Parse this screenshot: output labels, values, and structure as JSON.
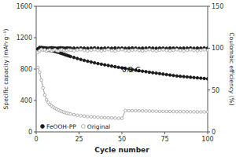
{
  "chart_data": {
    "type": "line",
    "xlabel": "Cycle number",
    "ylabel": "Specific capacity (mAh·g⁻¹)",
    "y2label": "Coulombic efficiency (%)",
    "xlim": [
      0,
      100
    ],
    "ylim": [
      0,
      1600
    ],
    "y2lim": [
      0,
      150
    ],
    "xticks": [
      0,
      25,
      50,
      75,
      100
    ],
    "yticks": [
      0,
      400,
      800,
      1200,
      1600
    ],
    "y2ticks": [
      0,
      50,
      100,
      150
    ],
    "grid": false,
    "legend": "lower left",
    "annotations": [
      {
        "text": "0.2 C",
        "x": 50,
        "y": 760
      }
    ],
    "x": [
      1,
      2,
      3,
      4,
      5,
      6,
      7,
      8,
      9,
      10,
      11,
      12,
      13,
      14,
      15,
      16,
      17,
      18,
      19,
      20,
      22,
      24,
      26,
      28,
      30,
      32,
      34,
      36,
      38,
      40,
      42,
      44,
      46,
      48,
      50,
      52,
      54,
      56,
      58,
      60,
      62,
      64,
      66,
      68,
      70,
      72,
      74,
      76,
      78,
      80,
      82,
      84,
      86,
      88,
      90,
      92,
      94,
      96,
      98,
      100
    ],
    "series": [
      {
        "name": "FeOOH-PP",
        "type": "line",
        "color": "#1a1a1a",
        "marker": "circle",
        "line_style": "solid",
        "values": [
          1055,
          1075,
          1068,
          1060,
          1052,
          1045,
          1040,
          1038,
          1035,
          1030,
          1025,
          1018,
          1012,
          1005,
          998,
          990,
          982,
          975,
          968,
          960,
          948,
          935,
          922,
          910,
          900,
          890,
          880,
          870,
          862,
          854,
          846,
          838,
          830,
          822,
          815,
          808,
          800,
          793,
          786,
          780,
          773,
          767,
          760,
          754,
          748,
          742,
          736,
          730,
          724,
          718,
          712,
          708,
          704,
          700,
          696,
          692,
          688,
          684,
          680,
          676
        ]
      },
      {
        "name": "Original",
        "type": "line",
        "color": "#a0a0a0",
        "marker": "circle-open",
        "line_style": "solid",
        "values": [
          820,
          760,
          660,
          560,
          470,
          410,
          375,
          350,
          330,
          315,
          302,
          290,
          278,
          268,
          260,
          252,
          245,
          238,
          233,
          228,
          220,
          212,
          206,
          200,
          195,
          192,
          189,
          186,
          183,
          181,
          179,
          177,
          176,
          174,
          173,
          272,
          271,
          270,
          269,
          268,
          267,
          266,
          265,
          264,
          263,
          262,
          261,
          260,
          260,
          259,
          258,
          258,
          257,
          257,
          256,
          256,
          255,
          255,
          255,
          254
        ]
      },
      {
        "type": "scatter",
        "axis": "y2",
        "color": "#1a1a1a",
        "marker": "circle",
        "values": [
          99.2,
          100.5,
          100.8,
          100.6,
          100.4,
          100.1,
          99.9,
          100.2,
          100.5,
          100.3,
          100.0,
          99.8,
          100.1,
          100.4,
          100.2,
          100.0,
          99.8,
          100.2,
          100.1,
          100.0,
          100.1,
          99.9,
          100.2,
          100.0,
          99.9,
          100.1,
          100.3,
          100.0,
          99.8,
          100.1,
          100.0,
          99.9,
          100.2,
          100.0,
          100.1,
          99.9,
          100.0,
          100.2,
          100.1,
          99.8,
          100.0,
          100.1,
          100.2,
          100.0,
          99.9,
          100.1,
          100.0,
          99.8,
          100.2,
          100.1,
          100.0,
          99.9,
          100.1,
          100.0,
          100.2,
          99.9,
          100.1,
          100.0,
          100.2,
          100.0
        ]
      },
      {
        "type": "scatter",
        "axis": "y2",
        "color": "#a0a0a0",
        "marker": "circle-open",
        "values": [
          95.0,
          97.0,
          98.5,
          97.5,
          98.0,
          96.5,
          97.5,
          98.0,
          96.8,
          97.5,
          98.2,
          97.0,
          96.5,
          97.8,
          98.1,
          97.4,
          96.8,
          97.2,
          98.0,
          97.5,
          96.9,
          97.8,
          98.2,
          97.2,
          96.7,
          97.5,
          98.1,
          97.3,
          96.8,
          97.5,
          98.2,
          97.0,
          96.5,
          97.8,
          98.2,
          97.0,
          96.8,
          97.5,
          98.0,
          97.3,
          96.7,
          97.4,
          98.1,
          97.2,
          96.6,
          97.5,
          98.0,
          97.3,
          96.8,
          97.5,
          98.1,
          97.2,
          96.7,
          97.5,
          98.0,
          97.3,
          96.8,
          97.5,
          98.1,
          97.4
        ]
      }
    ]
  }
}
